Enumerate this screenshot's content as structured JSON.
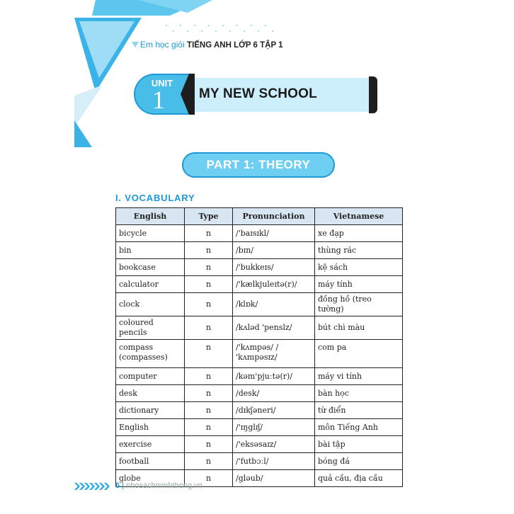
{
  "header": {
    "prefix": "Em học giỏi",
    "book": "TIẾNG ANH LỚP 6 TẬP 1"
  },
  "unit": {
    "label": "UNIT",
    "number": "1",
    "title": "MY NEW SCHOOL"
  },
  "part": "PART 1: THEORY",
  "section": "I. VOCABULARY",
  "table": {
    "headers": [
      "English",
      "Type",
      "Pronunciation",
      "Vietnamese"
    ],
    "rows": [
      [
        "bicycle",
        "n",
        "/'baɪsɪkl/",
        "xe đạp"
      ],
      [
        "bin",
        "n",
        "/bɪn/",
        "thùng rác"
      ],
      [
        "bookcase",
        "n",
        "/'bukkeɪs/",
        "kệ sách"
      ],
      [
        "calculator",
        "n",
        "/'kælkjuleɪtə(r)/",
        "máy tính"
      ],
      [
        "clock",
        "n",
        "/klɒk/",
        "đồng hồ (treo tường)"
      ],
      [
        "coloured pencils",
        "n",
        "/kʌləd 'penslz/",
        "bút chì màu"
      ],
      [
        "compass (compasses)",
        "n",
        "/'kʌmpəs/ / 'kʌmpəsɪz/",
        "com pa"
      ],
      [
        "computer",
        "n",
        "/kəm'pjuːtə(r)/",
        "máy vi tính"
      ],
      [
        "desk",
        "n",
        "/desk/",
        "bàn học"
      ],
      [
        "dictionary",
        "n",
        "/dɪkʃəneri/",
        "từ điển"
      ],
      [
        "English",
        "n",
        "/'ɪŋglɪʃ/",
        "môn Tiếng Anh"
      ],
      [
        "exercise",
        "n",
        "/'eksəsaɪz/",
        "bài tập"
      ],
      [
        "football",
        "n",
        "/'futbɔːl/",
        "bóng đá"
      ],
      [
        "globe",
        "n",
        "/gləub/",
        "quả cầu, địa cầu"
      ]
    ]
  },
  "footer": {
    "page": "6",
    "separator": "|",
    "site": "nhosachminhthong.vn"
  },
  "colors": {
    "accent": "#1a9ad6",
    "light": "#cdeefb",
    "header_bg": "#d7e6f2"
  }
}
